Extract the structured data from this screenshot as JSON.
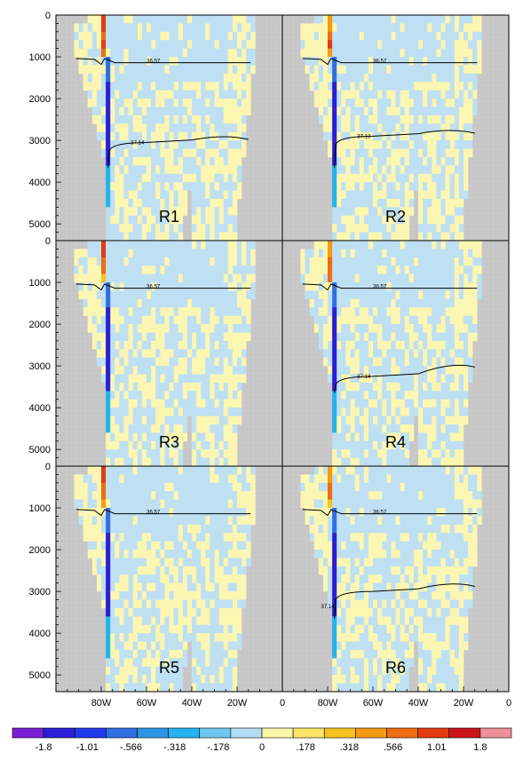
{
  "chart_data": {
    "type": "heatmap",
    "xlabel": "",
    "ylabel": "",
    "y_ticks": [
      "0",
      "1000",
      "2000",
      "3000",
      "4000",
      "5000"
    ],
    "y_tick_values": [
      0,
      1000,
      2000,
      3000,
      4000,
      5000
    ],
    "x_ticks": [
      "80W",
      "60W",
      "40W",
      "20W",
      "0"
    ],
    "x_tick_values": [
      -80,
      -60,
      -40,
      -20,
      0
    ],
    "x_range": [
      -100,
      0
    ],
    "y_range": [
      0,
      5400
    ],
    "panels": [
      {
        "label": "R1",
        "upper_contour_label": "36.57",
        "lower_contour_label": "37.14",
        "lower_depth_west": 3050,
        "lower_depth_east": 2900
      },
      {
        "label": "R2",
        "upper_contour_label": "36.57",
        "lower_contour_label": "37.13",
        "lower_depth_west": 2900,
        "lower_depth_east": 2750
      },
      {
        "label": "R3",
        "upper_contour_label": "36.57",
        "lower_contour_label": "",
        "lower_depth_west": null,
        "lower_depth_east": null
      },
      {
        "label": "R4",
        "upper_contour_label": "36.57",
        "lower_contour_label": "37.14",
        "lower_depth_west": 3250,
        "lower_depth_east": 2950
      },
      {
        "label": "R5",
        "upper_contour_label": "36.57",
        "lower_contour_label": "",
        "lower_depth_west": null,
        "lower_depth_east": null
      },
      {
        "label": "R6",
        "upper_contour_label": "36.57",
        "lower_contour_label": "37.14",
        "lower_depth_west": 3000,
        "lower_depth_east": 2800
      }
    ],
    "upper_contour_depth": 1100,
    "colorbar": {
      "labels": [
        "-1.8",
        "-1.01",
        "-.566",
        "-.318",
        "-.178",
        "0",
        ".178",
        ".318",
        ".566",
        "1.01",
        "1.8"
      ],
      "colors": [
        "#7b1fd6",
        "#2b1fd6",
        "#1f39ea",
        "#2f6fe0",
        "#2d95e6",
        "#25b3ee",
        "#6fc7ef",
        "#b4dcf3",
        "#fbf6a9",
        "#fbe466",
        "#f5c21e",
        "#f39b12",
        "#ee6d12",
        "#e23a12",
        "#c8161a",
        "#ee8f9a"
      ]
    },
    "land_color": "#c8c8c8",
    "grid": false
  }
}
